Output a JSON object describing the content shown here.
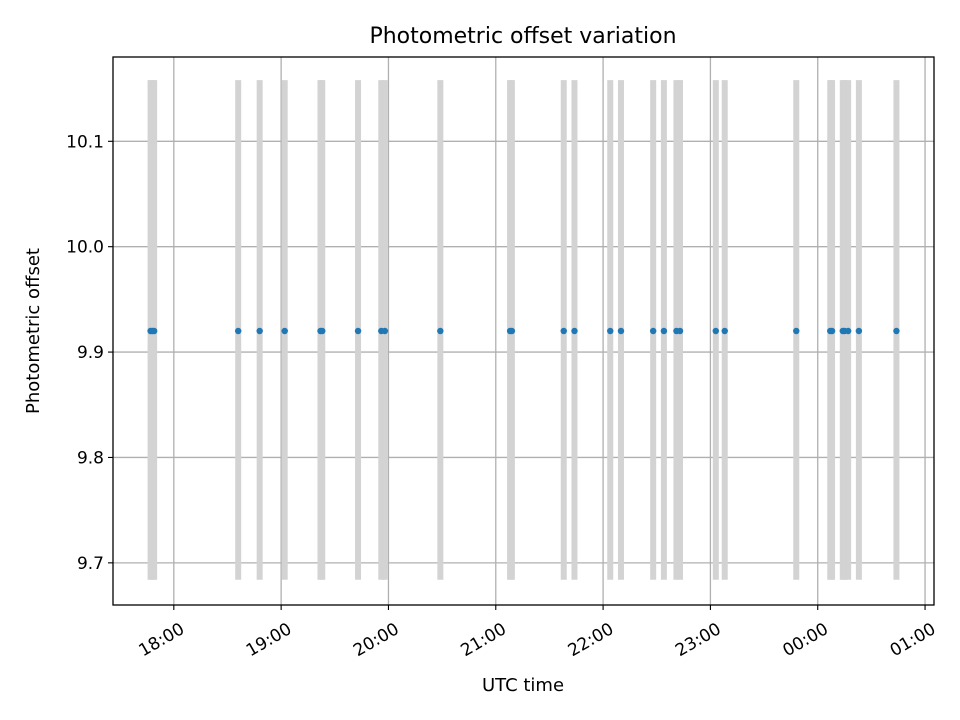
{
  "chart_data": {
    "type": "scatter",
    "title": "Photometric offset variation",
    "xlabel": "UTC time",
    "ylabel": "Photometric offset",
    "x_axis_type": "time",
    "xlim": [
      "17:26",
      "01:05"
    ],
    "ylim": [
      9.66,
      10.18
    ],
    "x_ticks": [
      "18:00",
      "19:00",
      "20:00",
      "21:00",
      "22:00",
      "23:00",
      "00:00",
      "01:00"
    ],
    "y_ticks": [
      "9.7",
      "9.8",
      "9.9",
      "10.0",
      "10.1"
    ],
    "grid": true,
    "point_color": "#1f77b4",
    "band_color": "#d3d3d3",
    "band_range": [
      9.684,
      10.158
    ],
    "points": [
      {
        "time": "17:47",
        "value": 9.92
      },
      {
        "time": "17:48",
        "value": 9.92
      },
      {
        "time": "17:49",
        "value": 9.92
      },
      {
        "time": "18:36",
        "value": 9.92
      },
      {
        "time": "18:48",
        "value": 9.92
      },
      {
        "time": "19:02",
        "value": 9.92
      },
      {
        "time": "19:22",
        "value": 9.92
      },
      {
        "time": "19:23",
        "value": 9.92
      },
      {
        "time": "19:43",
        "value": 9.92
      },
      {
        "time": "19:56",
        "value": 9.92
      },
      {
        "time": "19:58",
        "value": 9.92
      },
      {
        "time": "20:29",
        "value": 9.92
      },
      {
        "time": "21:08",
        "value": 9.92
      },
      {
        "time": "21:09",
        "value": 9.92
      },
      {
        "time": "21:38",
        "value": 9.92
      },
      {
        "time": "21:44",
        "value": 9.92
      },
      {
        "time": "22:04",
        "value": 9.92
      },
      {
        "time": "22:10",
        "value": 9.92
      },
      {
        "time": "22:28",
        "value": 9.92
      },
      {
        "time": "22:34",
        "value": 9.92
      },
      {
        "time": "22:41",
        "value": 9.92
      },
      {
        "time": "22:43",
        "value": 9.92
      },
      {
        "time": "23:03",
        "value": 9.92
      },
      {
        "time": "23:08",
        "value": 9.92
      },
      {
        "time": "23:48",
        "value": 9.92
      },
      {
        "time": "00:07",
        "value": 9.92
      },
      {
        "time": "00:08",
        "value": 9.92
      },
      {
        "time": "00:14",
        "value": 9.92
      },
      {
        "time": "00:15",
        "value": 9.92
      },
      {
        "time": "00:17",
        "value": 9.92
      },
      {
        "time": "00:23",
        "value": 9.92
      },
      {
        "time": "00:44",
        "value": 9.92
      }
    ]
  }
}
